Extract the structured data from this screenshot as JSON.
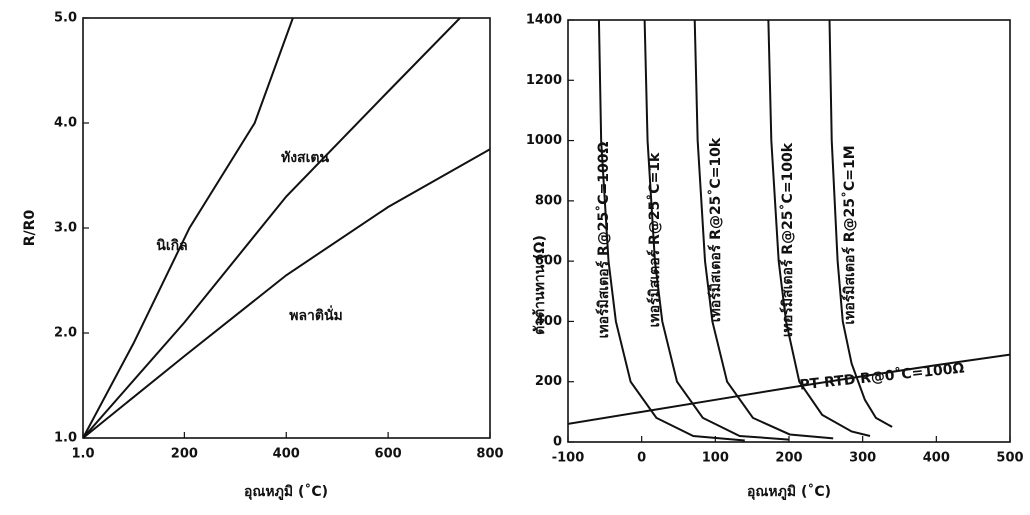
{
  "chart_data": [
    {
      "type": "line",
      "xlabel": "อุณหภูมิ (˚C)",
      "ylabel": "R/R0",
      "xlim": [
        1,
        800
      ],
      "xticks": [
        {
          "value": 1,
          "label": "1.0"
        },
        200,
        400,
        600,
        800
      ],
      "ylim": [
        1,
        5
      ],
      "yticks": [
        {
          "value": 1,
          "label": "1.0"
        },
        {
          "value": 2,
          "label": "2.0"
        },
        {
          "value": 3,
          "label": "3.0"
        },
        {
          "value": 4,
          "label": "4.0"
        },
        {
          "value": 5,
          "label": "5.0"
        }
      ],
      "grid": false,
      "series": [
        {
          "name": "นิเกิล",
          "color": "#111111",
          "x": [
            1,
            100,
            210,
            338,
            413
          ],
          "values": [
            1,
            1.9,
            3.0,
            4.0,
            5.0
          ]
        },
        {
          "name": "ทังสเตน",
          "color": "#111111",
          "x": [
            1,
            200,
            400,
            600,
            741
          ],
          "values": [
            1,
            2.1,
            3.3,
            4.3,
            5.0
          ]
        },
        {
          "name": "พลาตินั่ม",
          "color": "#111111",
          "x": [
            1,
            200,
            400,
            600,
            800
          ],
          "values": [
            1,
            1.78,
            2.55,
            3.2,
            3.75
          ]
        }
      ]
    },
    {
      "type": "line",
      "xlabel": "อุณหภูมิ (˚C)",
      "ylabel": "ตัวต้านทาน (Ω)",
      "xlim": [
        -100,
        500
      ],
      "xticks": [
        -100,
        0,
        100,
        200,
        300,
        400,
        500
      ],
      "ylim": [
        0,
        1400
      ],
      "yticks": [
        0,
        200,
        400,
        600,
        800,
        1000,
        1200,
        1400
      ],
      "grid": false,
      "series": [
        {
          "name": "เทอร์มิสเตอร์ R@25˚C=100Ω",
          "color": "#111111",
          "x": [
            -58,
            -55,
            -45,
            -35,
            -15,
            20,
            70,
            140
          ],
          "values": [
            1400,
            1000,
            600,
            400,
            200,
            80,
            20,
            5
          ]
        },
        {
          "name": "เทอร์มิสเตอร์ R@25˚C=1k",
          "color": "#111111",
          "x": [
            4,
            8,
            18,
            28,
            48,
            83,
            133,
            200
          ],
          "values": [
            1400,
            1000,
            600,
            400,
            200,
            80,
            20,
            8
          ]
        },
        {
          "name": "เทอร์มิสเตอร์ R@25˚C=10k",
          "color": "#111111",
          "x": [
            72,
            76,
            86,
            96,
            116,
            151,
            201,
            260
          ],
          "values": [
            1400,
            1000,
            600,
            400,
            200,
            80,
            25,
            12
          ]
        },
        {
          "name": "เทอร์มิสเตอร์ R@25˚C=100k",
          "color": "#111111",
          "x": [
            172,
            176,
            186,
            196,
            214,
            245,
            285,
            310
          ],
          "values": [
            1400,
            1000,
            600,
            400,
            200,
            90,
            35,
            20
          ]
        },
        {
          "name": "เทอร์มิสเตอร์ R@25˚C=1M",
          "color": "#111111",
          "x": [
            255,
            258,
            266,
            273,
            285,
            303,
            318,
            340
          ],
          "values": [
            1400,
            1000,
            600,
            400,
            260,
            140,
            80,
            50
          ]
        },
        {
          "name": "PT RTD R@0˚C=100Ω",
          "color": "#111111",
          "x": [
            -100,
            0,
            100,
            200,
            300,
            400,
            500
          ],
          "values": [
            60,
            100,
            140,
            180,
            218,
            255,
            290
          ]
        }
      ]
    }
  ]
}
